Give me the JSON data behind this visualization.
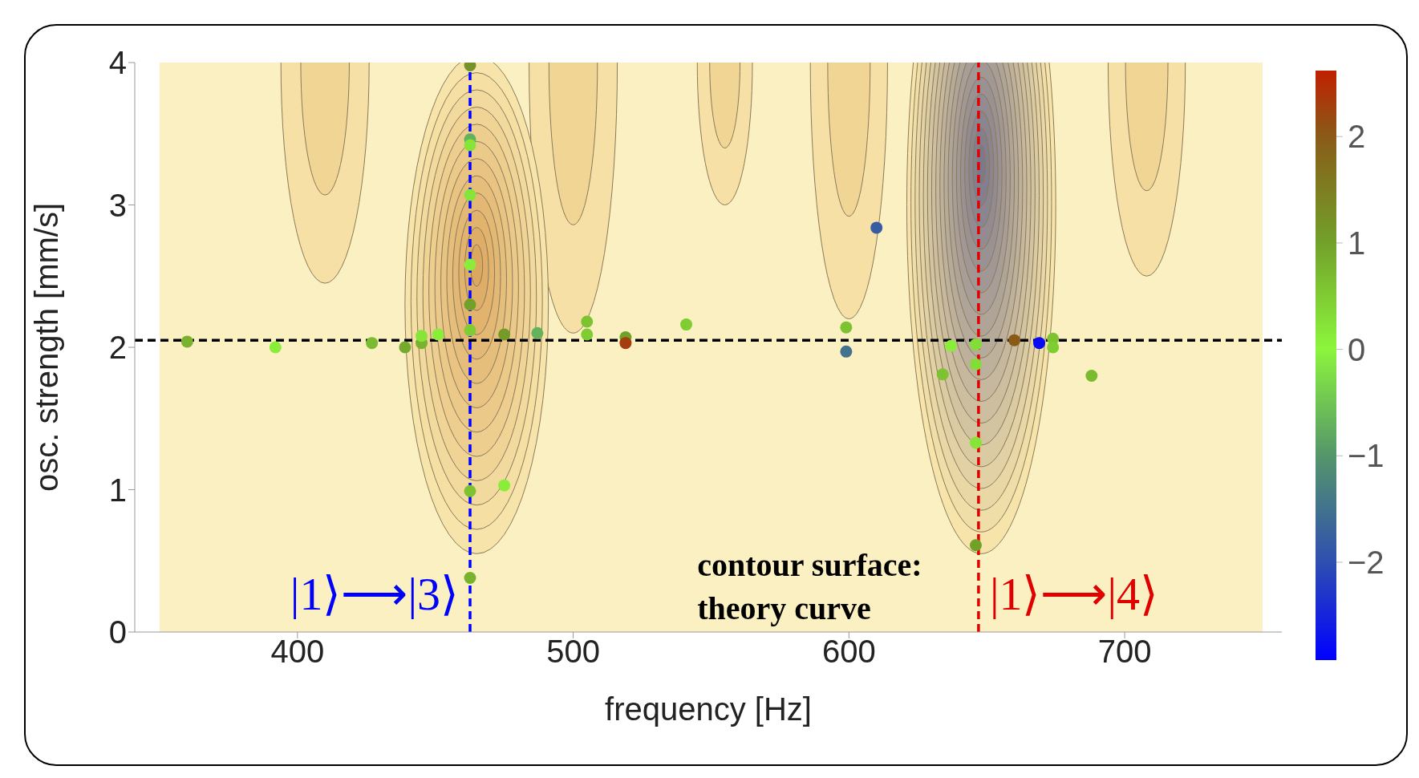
{
  "chart_data": {
    "type": "scatter",
    "xlabel": "frequency [Hz]",
    "ylabel": "osc. strength [mm/s]",
    "xlim": [
      341,
      757
    ],
    "ylim": [
      0,
      4
    ],
    "xticks": [
      400,
      500,
      600,
      700
    ],
    "yticks": [
      0,
      1,
      2,
      3,
      4
    ],
    "clim": [
      -2.92,
      2.62
    ],
    "cticks": [
      {
        "value": -2,
        "label": "−2"
      },
      {
        "value": -1,
        "label": "−1"
      },
      0,
      1,
      2
    ],
    "marker": "circle",
    "series": [
      {
        "x": [
          360,
          392,
          427,
          439,
          445,
          445,
          451,
          462.6,
          462.6,
          462.6,
          462.6,
          462.6,
          462.6,
          462.6,
          462.6,
          475,
          462.6,
          475,
          487,
          505,
          505,
          519,
          519,
          541,
          599,
          599,
          610,
          637,
          646,
          646,
          634,
          646,
          646,
          660,
          669,
          674,
          674,
          688
        ],
        "values": [
          2.04,
          2.0,
          2.03,
          2.0,
          2.03,
          2.08,
          2.09,
          3.98,
          3.46,
          3.42,
          3.07,
          2.58,
          2.3,
          2.12,
          0.99,
          1.03,
          0.38,
          2.09,
          2.1,
          2.18,
          2.09,
          2.07,
          2.03,
          2.16,
          2.14,
          1.97,
          2.84,
          2.01,
          2.02,
          1.88,
          1.81,
          1.33,
          0.61,
          2.05,
          2.03,
          2.06,
          2.0,
          1.8
        ],
        "cvalues": [
          0.8,
          0.1,
          0.7,
          0.9,
          0.8,
          0.2,
          0.1,
          1.2,
          -0.7,
          0.2,
          0.2,
          0.1,
          1.0,
          0.5,
          0.6,
          0.1,
          0.8,
          1.1,
          -0.7,
          0.6,
          0.5,
          1.0,
          2.3,
          0.5,
          0.6,
          -1.5,
          -1.8,
          0.1,
          0.3,
          0.3,
          0.6,
          0.2,
          1.0,
          2.0,
          -2.8,
          0.6,
          0.5,
          0.7
        ]
      }
    ],
    "ref_lines": [
      {
        "axis": "y",
        "value": 2.05,
        "color": "#000000",
        "line_style": "dashed"
      },
      {
        "axis": "x",
        "value": 462.6,
        "label": "|1⟩⟶|3⟩",
        "color": "#0000ff",
        "line_style": "dashed"
      },
      {
        "axis": "x",
        "value": 647,
        "label": "|1⟩⟶|4⟩",
        "color": "#e00000",
        "line_style": "dashed"
      }
    ],
    "annotations": [
      "contour surface: theory curve"
    ]
  }
}
